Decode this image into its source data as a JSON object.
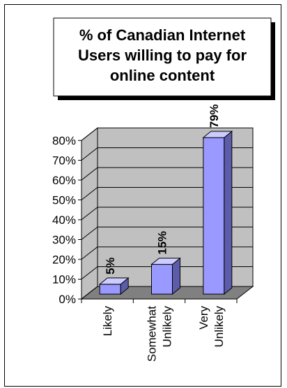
{
  "chart_data": {
    "type": "bar",
    "title_lines": [
      "% of Canadian Internet",
      "Users willing to pay for",
      "online content"
    ],
    "categories": [
      [
        "Likely"
      ],
      [
        "Somewhat",
        "Unlikely"
      ],
      [
        "Very",
        "Unlikely"
      ]
    ],
    "values": [
      5,
      15,
      79
    ],
    "data_labels": [
      "5%",
      "15%",
      "79%"
    ],
    "y_ticks": [
      "0%",
      "10%",
      "20%",
      "30%",
      "40%",
      "50%",
      "60%",
      "70%",
      "80%"
    ],
    "ylim": [
      0,
      80
    ],
    "grid": true,
    "legend": "none",
    "colors": {
      "bar_front": "#9999ff",
      "bar_top": "#ccccff",
      "bar_side": "#5c5ca8",
      "wall": "#c0c0c0",
      "floor": "#808080",
      "title_box": "#ffffff",
      "title_shadow": "#000000"
    }
  }
}
